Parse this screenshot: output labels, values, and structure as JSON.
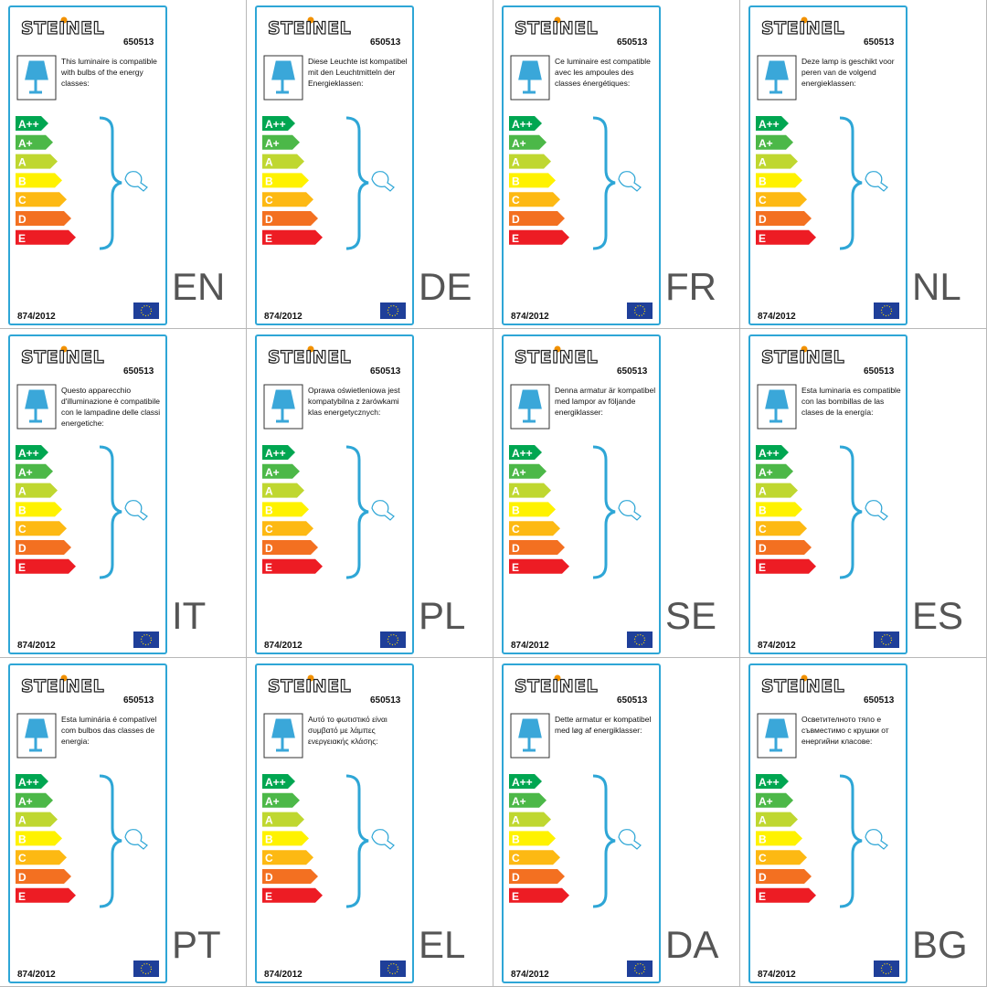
{
  "brand": "STEINEL",
  "model": "650513",
  "regulation": "874/2012",
  "classes": [
    "A++",
    "A+",
    "A",
    "B",
    "C",
    "D",
    "E"
  ],
  "labels": [
    {
      "lang": "EN",
      "text": "This luminaire is compatible with bulbs of the energy classes:"
    },
    {
      "lang": "DE",
      "text": "Diese Leuchte ist kompatibel mit den Leuchtmitteln der Energieklassen:"
    },
    {
      "lang": "FR",
      "text": "Ce luminaire est compatible avec les ampoules des classes énergétiques:"
    },
    {
      "lang": "NL",
      "text": "Deze lamp is geschikt voor peren van de volgend energieklassen:"
    },
    {
      "lang": "IT",
      "text": "Questo apparecchio d'illuminazione è compatibile con le lampadine delle classi energetiche:"
    },
    {
      "lang": "PL",
      "text": "Oprawa oświetleniowa jest kompatybilna z żarówkami klas energetycznych:"
    },
    {
      "lang": "SE",
      "text": "Denna armatur är kompatibel med lampor av följande energiklasser:"
    },
    {
      "lang": "ES",
      "text": "Esta luminaria es compatible con las bombillas de las clases de la energía:"
    },
    {
      "lang": "PT",
      "text": "Esta luminária é compatível com bulbos das classes de energia:"
    },
    {
      "lang": "EL",
      "text": "Αυτό το φωτιστικό είναι συμβατό με λάμπες ενεργειακής κλάσης:"
    },
    {
      "lang": "DA",
      "text": "Dette armatur er kompatibel med løg af energiklasser:"
    },
    {
      "lang": "BG",
      "text": "Осветителното тяло е съвместимо с крушки от енергийни класове:"
    }
  ]
}
